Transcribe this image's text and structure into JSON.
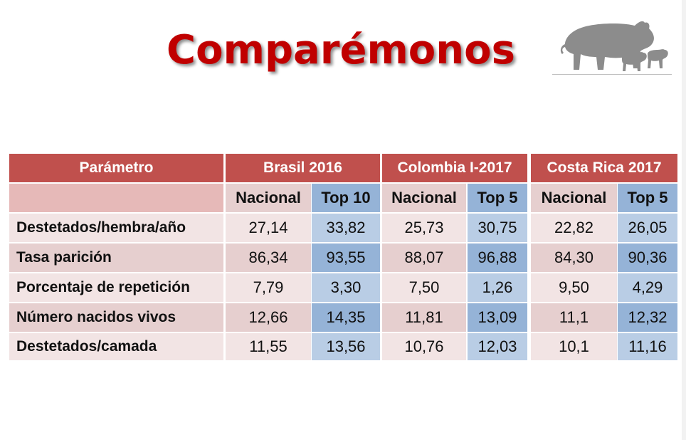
{
  "title": "Comparémonos",
  "logo": {
    "icon": "pigs-silhouette-icon"
  },
  "table": {
    "param_header": "Parámetro",
    "groups": [
      {
        "label": "Brasil 2016",
        "sub_national": "Nacional",
        "sub_top": "Top 10"
      },
      {
        "label": "Colombia I-2017",
        "sub_national": "Nacional",
        "sub_top": "Top 5"
      },
      {
        "label": "Costa Rica 2017",
        "sub_national": "Nacional",
        "sub_top": "Top 5"
      }
    ],
    "rows": [
      {
        "param": "Destetados/hembra/año",
        "values": [
          "27,14",
          "33,82",
          "25,73",
          "30,75",
          "22,82",
          "26,05"
        ]
      },
      {
        "param": "Tasa parición",
        "values": [
          "86,34",
          "93,55",
          "88,07",
          "96,88",
          "84,30",
          "90,36"
        ]
      },
      {
        "param": "Porcentaje de repetición",
        "values": [
          "7,79",
          "3,30",
          "7,50",
          "1,26",
          "9,50",
          "4,29"
        ]
      },
      {
        "param": "Número nacidos vivos",
        "values": [
          "12,66",
          "14,35",
          "11,81",
          "13,09",
          "11,1",
          "12,32"
        ]
      },
      {
        "param": "Destetados/camada",
        "values": [
          "11,55",
          "13,56",
          "10,76",
          "12,03",
          "10,1",
          "11,16"
        ]
      }
    ]
  },
  "colors": {
    "title": "#c00000",
    "header_bg": "#c0504d",
    "national_dark": "#e6cfcf",
    "national_light": "#f2e4e4",
    "top_dark": "#95b3d7",
    "top_light": "#b9cde5"
  }
}
